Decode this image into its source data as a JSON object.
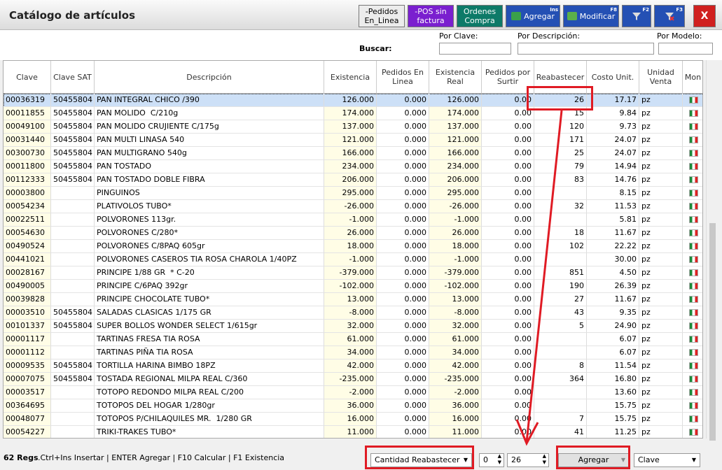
{
  "window": {
    "title": "Catálogo de artículos",
    "close": "X"
  },
  "toolbar": {
    "buttons": [
      {
        "label": "-Pedidos En_Linea"
      },
      {
        "label": "-POS sin factura"
      },
      {
        "label": "Ordenes Compra"
      },
      {
        "label": "Agregar",
        "shortcut": "Ins"
      },
      {
        "label": "Modificar",
        "shortcut": "F8"
      },
      {
        "shortcut": "F2"
      },
      {
        "shortcut": "F3"
      }
    ]
  },
  "search": {
    "label": "Buscar:",
    "fields": [
      "Por Clave:",
      "Por Descripción:",
      "Por Modelo:"
    ]
  },
  "table": {
    "columns": [
      "Clave",
      "Clave SAT",
      "Descripción",
      "Existencia",
      "Pedidos En Linea",
      "Existencia Real",
      "Pedidos por Surtir",
      "Reabastecer",
      "Costo Unit.",
      "Unidad Venta",
      "Mon"
    ],
    "rows": [
      [
        "00036319",
        "50455804",
        "PAN INTEGRAL CHICO /390",
        "126.000",
        "0.000",
        "126.000",
        "0.00",
        "26",
        "17.17",
        "pz"
      ],
      [
        "00011855",
        "50455804",
        "PAN MOLIDO  C/210g",
        "174.000",
        "0.000",
        "174.000",
        "0.00",
        "15",
        "9.84",
        "pz"
      ],
      [
        "00049100",
        "50455804",
        "PAN MOLIDO CRUJIENTE C/175g",
        "137.000",
        "0.000",
        "137.000",
        "0.00",
        "120",
        "9.73",
        "pz"
      ],
      [
        "00031440",
        "50455804",
        "PAN MULTI LINASA 540",
        "121.000",
        "0.000",
        "121.000",
        "0.00",
        "171",
        "24.07",
        "pz"
      ],
      [
        "00300730",
        "50455804",
        "PAN MULTIGRANO 540g",
        "166.000",
        "0.000",
        "166.000",
        "0.00",
        "25",
        "24.07",
        "pz"
      ],
      [
        "00011800",
        "50455804",
        "PAN TOSTADO",
        "234.000",
        "0.000",
        "234.000",
        "0.00",
        "79",
        "14.94",
        "pz"
      ],
      [
        "00112333",
        "50455804",
        "PAN TOSTADO DOBLE FIBRA",
        "206.000",
        "0.000",
        "206.000",
        "0.00",
        "83",
        "14.76",
        "pz"
      ],
      [
        "00003800",
        null,
        "PINGUINOS",
        "295.000",
        "0.000",
        "295.000",
        "0.00",
        null,
        "8.15",
        "pz"
      ],
      [
        "00054234",
        null,
        "PLATIVOLOS TUBO*",
        "-26.000",
        "0.000",
        "-26.000",
        "0.00",
        "32",
        "11.53",
        "pz"
      ],
      [
        "00022511",
        null,
        "POLVORONES 113gr.",
        "-1.000",
        "0.000",
        "-1.000",
        "0.00",
        null,
        "5.81",
        "pz"
      ],
      [
        "00054630",
        null,
        "POLVORONES C/280*",
        "26.000",
        "0.000",
        "26.000",
        "0.00",
        "18",
        "11.67",
        "pz"
      ],
      [
        "00490524",
        null,
        "POLVORONES C/8PAQ 605gr",
        "18.000",
        "0.000",
        "18.000",
        "0.00",
        "102",
        "22.22",
        "pz"
      ],
      [
        "00441021",
        null,
        "POLVORONES CASEROS TIA ROSA CHAROLA 1/40PZ",
        "-1.000",
        "0.000",
        "-1.000",
        "0.00",
        null,
        "30.00",
        "pz"
      ],
      [
        "00028167",
        null,
        "PRINCIPE 1/88 GR  * C-20",
        "-379.000",
        "0.000",
        "-379.000",
        "0.00",
        "851",
        "4.50",
        "pz"
      ],
      [
        "00490005",
        null,
        "PRINCIPE C/6PAQ 392gr",
        "-102.000",
        "0.000",
        "-102.000",
        "0.00",
        "190",
        "26.39",
        "pz"
      ],
      [
        "00039828",
        null,
        "PRINCIPE CHOCOLATE TUBO*",
        "13.000",
        "0.000",
        "13.000",
        "0.00",
        "27",
        "11.67",
        "pz"
      ],
      [
        "00003510",
        "50455804",
        "SALADAS CLASICAS 1/175 GR",
        "-8.000",
        "0.000",
        "-8.000",
        "0.00",
        "43",
        "9.35",
        "pz"
      ],
      [
        "00101337",
        "50455804",
        "SUPER BOLLOS WONDER SELECT 1/615gr",
        "32.000",
        "0.000",
        "32.000",
        "0.00",
        "5",
        "24.90",
        "pz"
      ],
      [
        "00001117",
        null,
        "TARTINAS FRESA TIA ROSA",
        "61.000",
        "0.000",
        "61.000",
        "0.00",
        null,
        "6.07",
        "pz"
      ],
      [
        "00001112",
        null,
        "TARTINAS PIÑA TIA ROSA",
        "34.000",
        "0.000",
        "34.000",
        "0.00",
        null,
        "6.07",
        "pz"
      ],
      [
        "00009535",
        "50455804",
        "TORTILLA HARINA BIMBO 18PZ",
        "42.000",
        "0.000",
        "42.000",
        "0.00",
        "8",
        "11.54",
        "pz"
      ],
      [
        "00007075",
        "50455804",
        "TOSTADA REGIONAL MILPA REAL C/360",
        "-235.000",
        "0.000",
        "-235.000",
        "0.00",
        "364",
        "16.80",
        "pz"
      ],
      [
        "00003517",
        null,
        "TOTOPO REDONDO MILPA REAL C/200",
        "-2.000",
        "0.000",
        "-2.000",
        "0.00",
        null,
        "13.60",
        "pz"
      ],
      [
        "00364695",
        null,
        "TOTOPOS DEL HOGAR 1/280gr",
        "36.000",
        "0.000",
        "36.000",
        "0.00",
        null,
        "15.75",
        "pz"
      ],
      [
        "00048077",
        null,
        "TOTOPOS P/CHILAQUILES MR.  1/280 GR",
        "16.000",
        "0.000",
        "16.000",
        "0.00",
        "7",
        "15.75",
        "pz"
      ],
      [
        "00054227",
        null,
        "TRIKI-TRAKES TUBO*",
        "11.000",
        "0.000",
        "11.000",
        "0.00",
        "41",
        "11.25",
        "pz"
      ]
    ]
  },
  "status": {
    "count": "62 Regs",
    "hint": ".Ctrl+Ins Insertar | ENTER Agregar | F10 Calcular | F1 Existencia",
    "mode": "Cantidad Reabastecer",
    "from": "0",
    "to": "26",
    "button": "Agregar",
    "sort": "Clave"
  }
}
